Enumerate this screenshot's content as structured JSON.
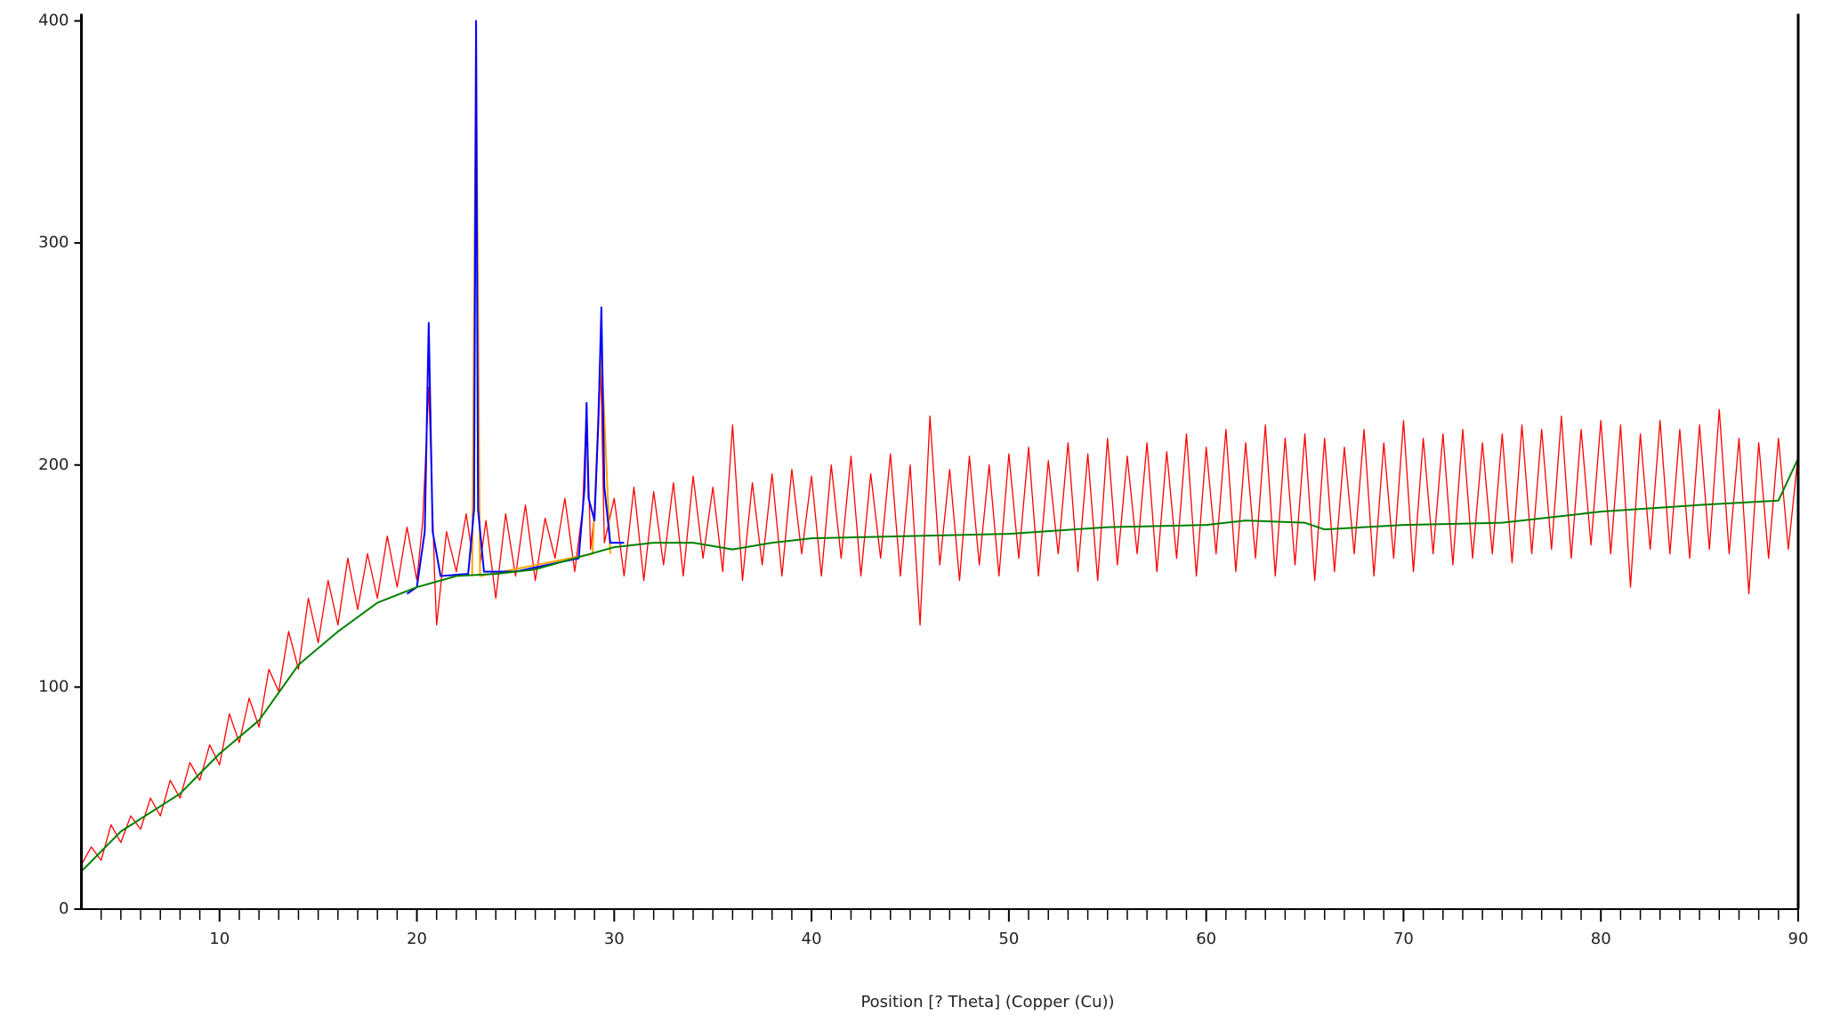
{
  "chart_data": {
    "type": "line",
    "x_label": "Position [?  Theta] (Copper (Cu))",
    "xlim": [
      3,
      90
    ],
    "xticks": [
      10,
      20,
      30,
      40,
      50,
      60,
      70,
      80,
      90
    ],
    "x_minor_ticks": [
      4,
      5,
      6,
      7,
      8,
      9,
      11,
      12,
      13,
      14,
      15,
      16,
      17,
      18,
      19,
      21,
      22,
      23,
      24,
      25,
      26,
      27,
      28,
      29,
      31,
      32,
      33,
      34,
      35,
      36,
      37,
      38,
      39,
      41,
      42,
      43,
      44,
      45,
      46,
      47,
      48,
      49,
      51,
      52,
      53,
      54,
      55,
      56,
      57,
      58,
      59,
      61,
      62,
      63,
      64,
      65,
      66,
      67,
      68,
      69,
      71,
      72,
      73,
      74,
      75,
      76,
      77,
      78,
      79,
      81,
      82,
      83,
      84,
      85,
      86,
      87,
      88,
      89
    ],
    "ylim": [
      0,
      400
    ],
    "yticks": [
      0,
      100,
      200,
      300,
      400
    ],
    "series": [
      {
        "color": "#ff0000",
        "x": [
          3,
          3.5,
          4,
          4.5,
          5,
          5.5,
          6,
          6.5,
          7,
          7.5,
          8,
          8.5,
          9,
          9.5,
          10,
          10.5,
          11,
          11.5,
          12,
          12.5,
          13,
          13.5,
          14,
          14.5,
          15,
          15.5,
          16,
          16.5,
          17,
          17.5,
          18,
          18.5,
          19,
          19.5,
          20,
          20.3,
          20.6,
          20.9,
          21,
          21.5,
          22,
          22.5,
          22.8,
          23,
          23.2,
          23.5,
          24,
          24.5,
          25,
          25.5,
          26,
          26.5,
          27,
          27.5,
          28,
          28.4,
          28.6,
          28.8,
          29,
          29.3,
          29.5,
          30,
          30.5,
          31,
          31.5,
          32,
          32.5,
          33,
          33.5,
          34,
          34.5,
          35,
          35.5,
          36,
          36.5,
          37,
          37.5,
          38,
          38.5,
          39,
          39.5,
          40,
          40.5,
          41,
          41.5,
          42,
          42.5,
          43,
          43.5,
          44,
          44.5,
          45,
          45.5,
          46,
          46.5,
          47,
          47.5,
          48,
          48.5,
          49,
          49.5,
          50,
          50.5,
          51,
          51.5,
          52,
          52.5,
          53,
          53.5,
          54,
          54.5,
          55,
          55.5,
          56,
          56.5,
          57,
          57.5,
          58,
          58.5,
          59,
          59.5,
          60,
          60.5,
          61,
          61.5,
          62,
          62.5,
          63,
          63.5,
          64,
          64.5,
          65,
          65.5,
          66,
          66.5,
          67,
          67.5,
          68,
          68.5,
          69,
          69.5,
          70,
          70.5,
          71,
          71.5,
          72,
          72.5,
          73,
          73.5,
          74,
          74.5,
          75,
          75.5,
          76,
          76.5,
          77,
          77.5,
          78,
          78.5,
          79,
          79.5,
          80,
          80.5,
          81,
          81.5,
          82,
          82.5,
          83,
          83.5,
          84,
          84.5,
          85,
          85.5,
          86,
          86.5,
          87,
          87.5,
          88,
          88.5,
          89,
          89.5,
          90
        ],
        "values": [
          20,
          28,
          22,
          38,
          30,
          42,
          36,
          50,
          42,
          58,
          50,
          66,
          58,
          74,
          65,
          88,
          75,
          95,
          82,
          108,
          98,
          125,
          108,
          140,
          120,
          148,
          128,
          158,
          135,
          160,
          140,
          168,
          145,
          172,
          148,
          175,
          235,
          150,
          128,
          170,
          152,
          178,
          160,
          365,
          155,
          175,
          140,
          178,
          150,
          182,
          148,
          176,
          158,
          185,
          152,
          180,
          228,
          162,
          178,
          252,
          165,
          185,
          150,
          190,
          148,
          188,
          155,
          192,
          150,
          195,
          158,
          190,
          152,
          218,
          148,
          192,
          155,
          196,
          150,
          198,
          160,
          195,
          150,
          200,
          158,
          204,
          150,
          196,
          158,
          205,
          150,
          200,
          128,
          222,
          155,
          198,
          148,
          204,
          155,
          200,
          150,
          205,
          158,
          208,
          150,
          202,
          160,
          210,
          152,
          205,
          148,
          212,
          155,
          204,
          160,
          210,
          152,
          206,
          158,
          214,
          150,
          208,
          160,
          216,
          152,
          210,
          158,
          218,
          150,
          212,
          155,
          214,
          148,
          212,
          152,
          208,
          160,
          216,
          150,
          210,
          158,
          220,
          152,
          212,
          160,
          214,
          155,
          216,
          158,
          210,
          160,
          214,
          156,
          218,
          160,
          216,
          162,
          222,
          158,
          216,
          164,
          220,
          160,
          218,
          145,
          214,
          162,
          220,
          160,
          216,
          158,
          218,
          162,
          225,
          160,
          212,
          142,
          210,
          158,
          212,
          162,
          205
        ]
      },
      {
        "color": "#ffa500",
        "x": [
          22.8,
          23,
          23.2,
          28.9,
          29.35,
          29.8
        ],
        "values": [
          150,
          390,
          150,
          160,
          252,
          160
        ]
      },
      {
        "color": "#0000ff",
        "x": [
          19.5,
          20,
          20.4,
          20.6,
          20.8,
          21.2,
          22.6,
          22.9,
          23,
          23.1,
          23.4,
          25,
          28.2,
          28.5,
          28.6,
          28.7,
          29,
          29.2,
          29.35,
          29.5,
          29.8,
          30.5
        ],
        "values": [
          142,
          145,
          170,
          264,
          170,
          150,
          151,
          180,
          400,
          180,
          152,
          152,
          158,
          190,
          228,
          185,
          175,
          220,
          271,
          190,
          165,
          165
        ]
      },
      {
        "color": "#008000",
        "x": [
          3,
          5,
          8,
          10,
          12,
          14,
          16,
          18,
          20,
          22,
          24,
          26,
          28,
          30,
          32,
          34,
          36,
          38,
          40,
          45,
          50,
          55,
          60,
          62,
          65,
          66,
          70,
          75,
          80,
          85,
          89,
          90
        ],
        "values": [
          17,
          35,
          52,
          70,
          85,
          110,
          125,
          138,
          145,
          150,
          151,
          153,
          158,
          163,
          165,
          165,
          162,
          165,
          167,
          168,
          169,
          172,
          173,
          175,
          174,
          171,
          173,
          174,
          179,
          182,
          184,
          203
        ]
      }
    ]
  }
}
